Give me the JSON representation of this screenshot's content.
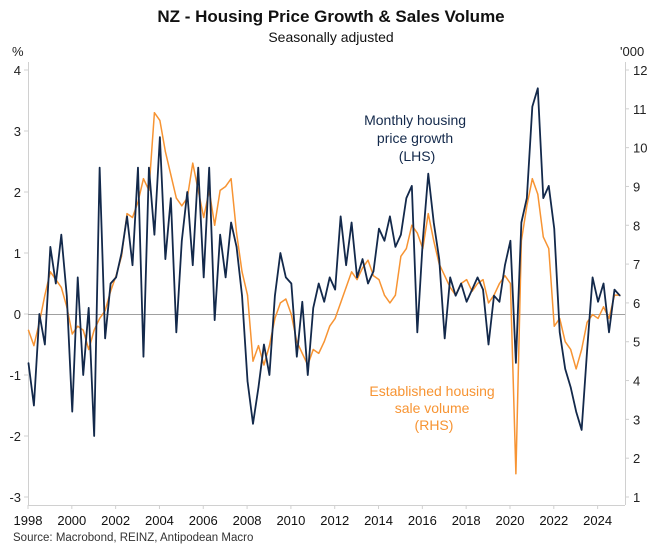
{
  "chart_data": {
    "type": "line",
    "title": "NZ - Housing Price Growth & Sales Volume",
    "subtitle": "Seasonally adjusted",
    "source": "Source: Macrobond, REINZ, Antipodean Macro",
    "left_axis": {
      "unit": "%",
      "ylim": [
        -3,
        4
      ],
      "ticks": [
        "-3",
        "-2",
        "-1",
        "0",
        "1",
        "2",
        "3",
        "4"
      ]
    },
    "right_axis": {
      "unit": "'000",
      "ylim": [
        1,
        12
      ],
      "ticks": [
        "1",
        "2",
        "3",
        "4",
        "5",
        "6",
        "7",
        "8",
        "9",
        "10",
        "11",
        "12"
      ]
    },
    "x_axis": {
      "xlim": [
        1998,
        2025.25
      ],
      "ticks": [
        "1998",
        "2000",
        "2002",
        "2004",
        "2006",
        "2008",
        "2010",
        "2012",
        "2014",
        "2016",
        "2018",
        "2020",
        "2022",
        "2024"
      ]
    },
    "x_start": 1998,
    "x_step": 0.25,
    "grid": false,
    "zero_line": true,
    "series": [
      {
        "name": "Monthly housing price growth (LHS)",
        "axis": "left",
        "color": "#13294b",
        "label_lines": [
          "Monthly housing",
          "price growth",
          "(LHS)"
        ],
        "values": [
          -0.8,
          -1.5,
          0.0,
          -0.5,
          1.1,
          0.5,
          1.3,
          0.3,
          -1.6,
          0.6,
          -1.0,
          0.1,
          -2.0,
          2.4,
          -0.4,
          0.5,
          0.6,
          1.0,
          1.6,
          0.8,
          2.4,
          -0.7,
          2.4,
          1.3,
          2.9,
          0.9,
          1.9,
          -0.3,
          1.2,
          2.0,
          0.8,
          2.4,
          0.6,
          2.4,
          -0.1,
          1.3,
          0.6,
          1.5,
          1.1,
          0.3,
          -1.1,
          -1.8,
          -1.2,
          -0.5,
          -1.0,
          0.3,
          1.0,
          0.6,
          0.5,
          -0.7,
          0.2,
          -1.0,
          0.1,
          0.5,
          0.2,
          0.6,
          0.4,
          1.6,
          0.8,
          1.5,
          0.6,
          0.9,
          0.5,
          0.7,
          1.4,
          1.2,
          1.6,
          1.1,
          1.3,
          1.9,
          2.1,
          -0.3,
          1.2,
          2.3,
          1.5,
          0.9,
          -0.4,
          0.6,
          0.3,
          0.5,
          0.2,
          0.4,
          0.6,
          0.4,
          -0.5,
          0.3,
          0.2,
          0.8,
          1.2,
          -0.8,
          1.5,
          1.9,
          3.4,
          3.7,
          1.9,
          2.1,
          1.4,
          -0.3,
          -0.9,
          -1.2,
          -1.6,
          -1.9,
          -0.6,
          0.6,
          0.2,
          0.5,
          -0.3,
          0.4,
          0.3
        ]
      },
      {
        "name": "Established housing sale volume (RHS)",
        "axis": "right",
        "color": "#f79433",
        "label_lines": [
          "Established housing",
          "sale volume",
          "(RHS)"
        ],
        "values": [
          5.3,
          4.9,
          5.5,
          6.2,
          6.8,
          6.6,
          6.4,
          5.9,
          5.2,
          5.4,
          5.3,
          4.8,
          5.3,
          5.6,
          5.8,
          6.3,
          6.7,
          7.2,
          8.3,
          8.2,
          8.6,
          9.2,
          8.9,
          10.9,
          10.7,
          9.9,
          9.3,
          8.7,
          8.5,
          8.7,
          9.6,
          8.9,
          8.2,
          8.9,
          8.0,
          8.9,
          9.0,
          9.2,
          7.8,
          6.8,
          6.2,
          4.5,
          4.9,
          4.4,
          4.9,
          5.6,
          6.0,
          6.1,
          5.7,
          5.0,
          4.7,
          4.4,
          4.8,
          4.7,
          5.0,
          5.4,
          5.6,
          6.0,
          6.4,
          6.8,
          6.6,
          6.9,
          7.1,
          6.7,
          6.6,
          6.2,
          6.0,
          6.2,
          7.2,
          7.4,
          8.0,
          7.8,
          7.4,
          8.3,
          7.6,
          7.0,
          6.7,
          6.4,
          6.2,
          6.5,
          6.6,
          6.3,
          6.5,
          6.6,
          6.0,
          6.2,
          6.5,
          6.7,
          6.5,
          1.6,
          7.6,
          8.5,
          9.2,
          8.8,
          7.7,
          7.4,
          5.4,
          5.6,
          5.0,
          4.8,
          4.3,
          4.8,
          5.5,
          5.7,
          5.6,
          5.9,
          5.6,
          6.2,
          6.2
        ]
      }
    ]
  }
}
